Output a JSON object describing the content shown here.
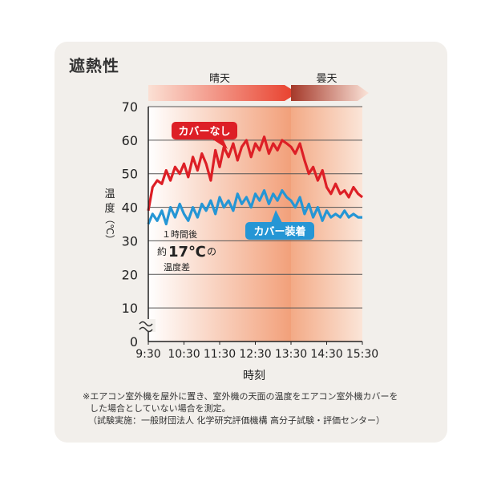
{
  "title": "遮熱性",
  "chart_data": {
    "type": "line",
    "xlabel": "時刻",
    "ylabel": [
      "温",
      "度",
      "（℃）"
    ],
    "ylim": [
      0,
      70
    ],
    "y_ticks": [
      "0",
      "10",
      "20",
      "30",
      "40",
      "50",
      "60",
      "70"
    ],
    "x_ticks": [
      "9:30",
      "10:30",
      "11:30",
      "12:30",
      "13:30",
      "14:30",
      "15:30"
    ],
    "weather": [
      {
        "label": "晴天",
        "from": "9:30",
        "to": "13:30"
      },
      {
        "label": "曇天",
        "from": "13:30",
        "to": "15:30"
      }
    ],
    "series": [
      {
        "name": "カバーなし",
        "color": "#dd1f26",
        "x_hours": [
          9.5,
          9.62,
          9.75,
          9.88,
          10.0,
          10.12,
          10.25,
          10.38,
          10.5,
          10.62,
          10.75,
          10.88,
          11.0,
          11.12,
          11.25,
          11.38,
          11.5,
          11.62,
          11.75,
          11.88,
          12.0,
          12.12,
          12.25,
          12.38,
          12.5,
          12.62,
          12.75,
          12.88,
          13.0,
          13.12,
          13.25,
          13.38,
          13.5,
          13.62,
          13.75,
          13.88,
          14.0,
          14.12,
          14.25,
          14.38,
          14.5,
          14.62,
          14.75,
          14.88,
          15.0,
          15.12,
          15.25,
          15.38,
          15.5
        ],
        "values": [
          39,
          46,
          48,
          47,
          51,
          48,
          52,
          50,
          53,
          49,
          55,
          51,
          56,
          53,
          48,
          57,
          52,
          58,
          55,
          59,
          54,
          58,
          60,
          55,
          59,
          57,
          61,
          56,
          59,
          57,
          60,
          59,
          58,
          56,
          59,
          54,
          50,
          52,
          48,
          51,
          46,
          44,
          47,
          44,
          45,
          43,
          46,
          44,
          43
        ]
      },
      {
        "name": "カバー装着",
        "color": "#2596d5",
        "x_hours": [
          9.5,
          9.62,
          9.75,
          9.88,
          10.0,
          10.12,
          10.25,
          10.38,
          10.5,
          10.62,
          10.75,
          10.88,
          11.0,
          11.12,
          11.25,
          11.38,
          11.5,
          11.62,
          11.75,
          11.88,
          12.0,
          12.12,
          12.25,
          12.38,
          12.5,
          12.62,
          12.75,
          12.88,
          13.0,
          13.12,
          13.25,
          13.38,
          13.5,
          13.62,
          13.75,
          13.88,
          14.0,
          14.12,
          14.25,
          14.38,
          14.5,
          14.62,
          14.75,
          14.88,
          15.0,
          15.12,
          15.25,
          15.38,
          15.5
        ],
        "values": [
          35,
          38,
          36,
          39,
          35,
          40,
          37,
          41,
          38,
          36,
          40,
          37,
          41,
          39,
          42,
          38,
          43,
          40,
          42,
          39,
          44,
          41,
          43,
          40,
          44,
          42,
          45,
          41,
          44,
          42,
          45,
          43,
          42,
          40,
          43,
          38,
          41,
          37,
          40,
          36,
          39,
          37,
          38,
          37,
          39,
          37,
          38,
          37,
          37
        ]
      }
    ],
    "annotation": {
      "line1": "１時間後",
      "prefix": "約",
      "value": "17℃",
      "suffix": "の",
      "line3": "温度差"
    }
  },
  "footnotes": [
    "※エアコン室外機を屋外に置き、室外機の天面の温度をエアコン室外機カバーを",
    "した場合としていない場合を測定。",
    "（試験実施：一般財団法人 化学研究評価機構 高分子試験・評価センター）"
  ]
}
